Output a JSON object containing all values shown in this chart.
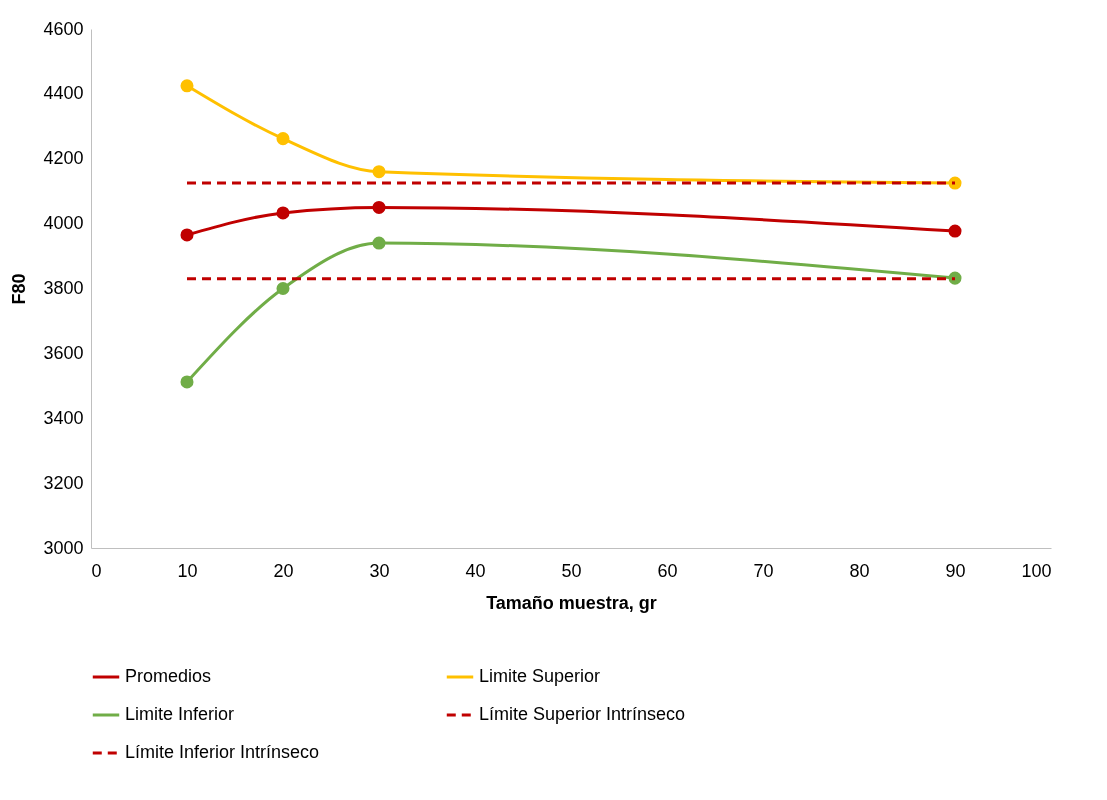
{
  "chart_data": {
    "type": "line",
    "xlabel": "Tamaño muestra, gr",
    "ylabel": "F80",
    "x": [
      10,
      20,
      30,
      90
    ],
    "series": [
      {
        "name": "Promedios",
        "color": "#c00000",
        "values": [
          3965,
          4033,
          4050,
          3977
        ],
        "marker": "circle",
        "line_style": "solid"
      },
      {
        "name": "Limite Superior",
        "color": "#ffc000",
        "values": [
          4425,
          4262,
          4160,
          4125
        ],
        "marker": "circle",
        "line_style": "solid"
      },
      {
        "name": "Limite Inferior",
        "color": "#70ad47",
        "values": [
          3512,
          3800,
          3940,
          3832
        ],
        "marker": "circle",
        "line_style": "solid"
      },
      {
        "name": "Límite Superior Intrínseco",
        "color": "#c00000",
        "values": [
          4125,
          4125,
          4125,
          4125
        ],
        "marker": "none",
        "line_style": "dashed"
      },
      {
        "name": "Límite Inferior Intrínseco",
        "color": "#c00000",
        "values": [
          3830,
          3830,
          3830,
          3830
        ],
        "marker": "none",
        "line_style": "dashed"
      }
    ],
    "xlim": [
      0,
      100
    ],
    "xticks": [
      0,
      10,
      20,
      30,
      40,
      50,
      60,
      70,
      80,
      90,
      100
    ],
    "ylim": [
      3000,
      4600
    ],
    "yticks": [
      3000,
      3200,
      3400,
      3600,
      3800,
      4000,
      4200,
      4400,
      4600
    ],
    "grid": false,
    "legend": "bottom"
  }
}
